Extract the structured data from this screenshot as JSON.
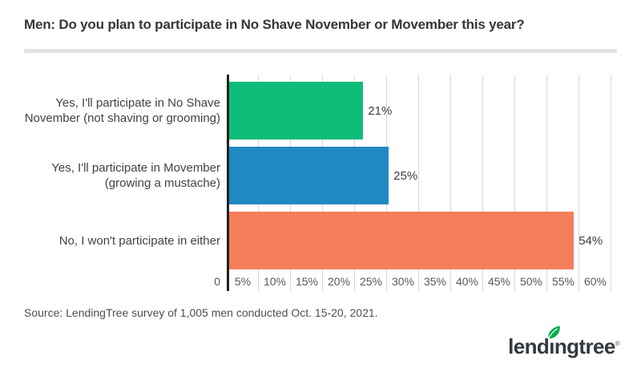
{
  "header": {
    "title": "Men: Do you plan to participate in No Shave November or Movember this year?"
  },
  "chart_data": {
    "type": "bar",
    "orientation": "horizontal",
    "title": "Men: Do you plan to participate in No Shave November or Movember this year?",
    "categories": [
      "Yes, I'll participate in No Shave November (not shaving or grooming)",
      "Yes, I'll participate in Movember (growing a mustache)",
      "No, I won't participate in either"
    ],
    "category_lines": [
      [
        "Yes, I'll participate in No Shave November",
        "(not shaving or grooming)"
      ],
      [
        "Yes, I'll participate in Movember (growing a",
        "mustache)"
      ],
      [
        "No, I won't participate in either",
        ""
      ]
    ],
    "values": [
      21,
      25,
      54
    ],
    "value_labels": [
      "21%",
      "25%",
      "54%"
    ],
    "bar_colors": [
      "#0dbd79",
      "#2189c2",
      "#f57e5b"
    ],
    "xlim": [
      0,
      60
    ],
    "x_tick_labels": [
      "0",
      "5%",
      "10%",
      "15%",
      "20%",
      "25%",
      "30%",
      "35%",
      "40%",
      "45%",
      "50%",
      "55%",
      "60%"
    ],
    "grid": true,
    "gridline_color": "#d8d8d8",
    "axis_color": "#212121",
    "legend": "none"
  },
  "footer": {
    "source": "Source: LendingTree survey of 1,005 men conducted Oct. 15-20, 2021.",
    "logo_part1": "lend",
    "logo_part2": "ı",
    "logo_part3": "ngtree",
    "logo_trademark": "®",
    "logo_leaf_color": "#00ae4d"
  }
}
